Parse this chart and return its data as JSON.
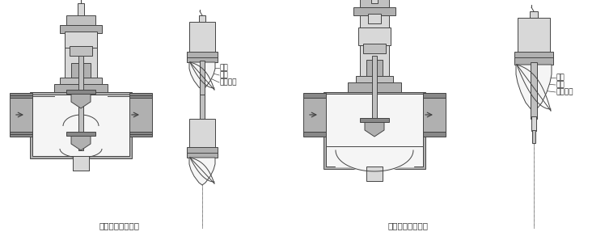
{
  "bg_color": "#ffffff",
  "lc": "#444444",
  "lc_thin": "#666666",
  "fc_body": "#b0b0b0",
  "fc_light": "#d8d8d8",
  "fc_white": "#f5f5f5",
  "fc_dark": "#888888",
  "fc_mid": "#c0c0c0",
  "label1": "双座调节阀结构图",
  "label2": "单座调节阀结构图",
  "annots": [
    "快开",
    "线性",
    "等百分比"
  ],
  "font_annot": 6.5,
  "font_label": 7.5,
  "figsize": [
    7.53,
    2.92
  ],
  "dpi": 100
}
